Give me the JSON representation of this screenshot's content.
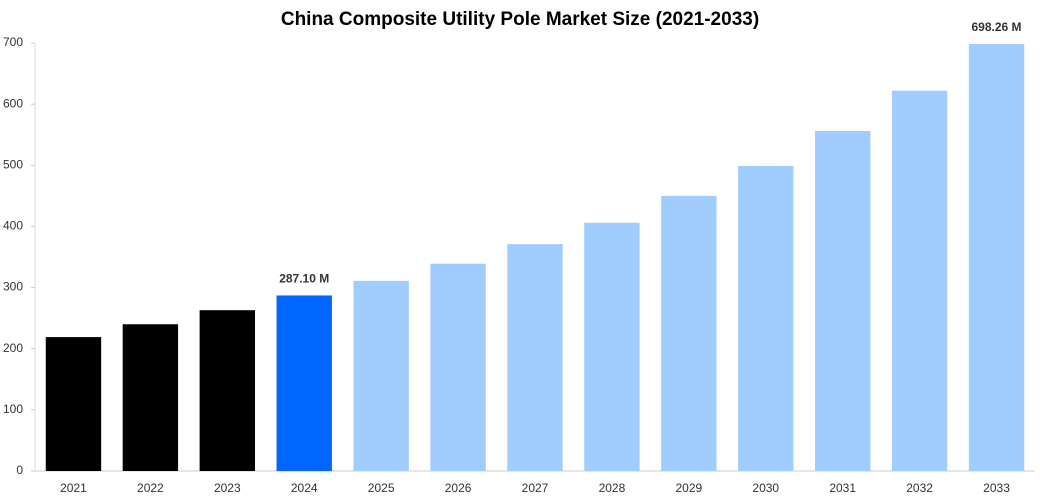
{
  "chart_data": {
    "type": "bar",
    "title": "China Composite Utility Pole Market Size (2021-2033)",
    "categories": [
      "2021",
      "2022",
      "2023",
      "2024",
      "2025",
      "2026",
      "2027",
      "2028",
      "2029",
      "2030",
      "2031",
      "2032",
      "2033"
    ],
    "values": [
      219,
      240,
      263,
      287.1,
      311,
      339,
      371,
      406,
      450,
      499,
      556,
      622,
      698.26
    ],
    "value_labels": [
      null,
      null,
      null,
      "287.10 M",
      null,
      null,
      null,
      null,
      null,
      null,
      null,
      null,
      "698.26 M"
    ],
    "colors": [
      "#000000",
      "#000000",
      "#000000",
      "#0066ff",
      "#a0cdfd",
      "#a0cdfd",
      "#a0cdfd",
      "#a0cdfd",
      "#a0cdfd",
      "#a0cdfd",
      "#a0cdfd",
      "#a0cdfd",
      "#a0cdfd"
    ],
    "ylim": [
      0,
      700
    ],
    "yticks": [
      0,
      100,
      200,
      300,
      400,
      500,
      600,
      700
    ],
    "grid": false
  }
}
